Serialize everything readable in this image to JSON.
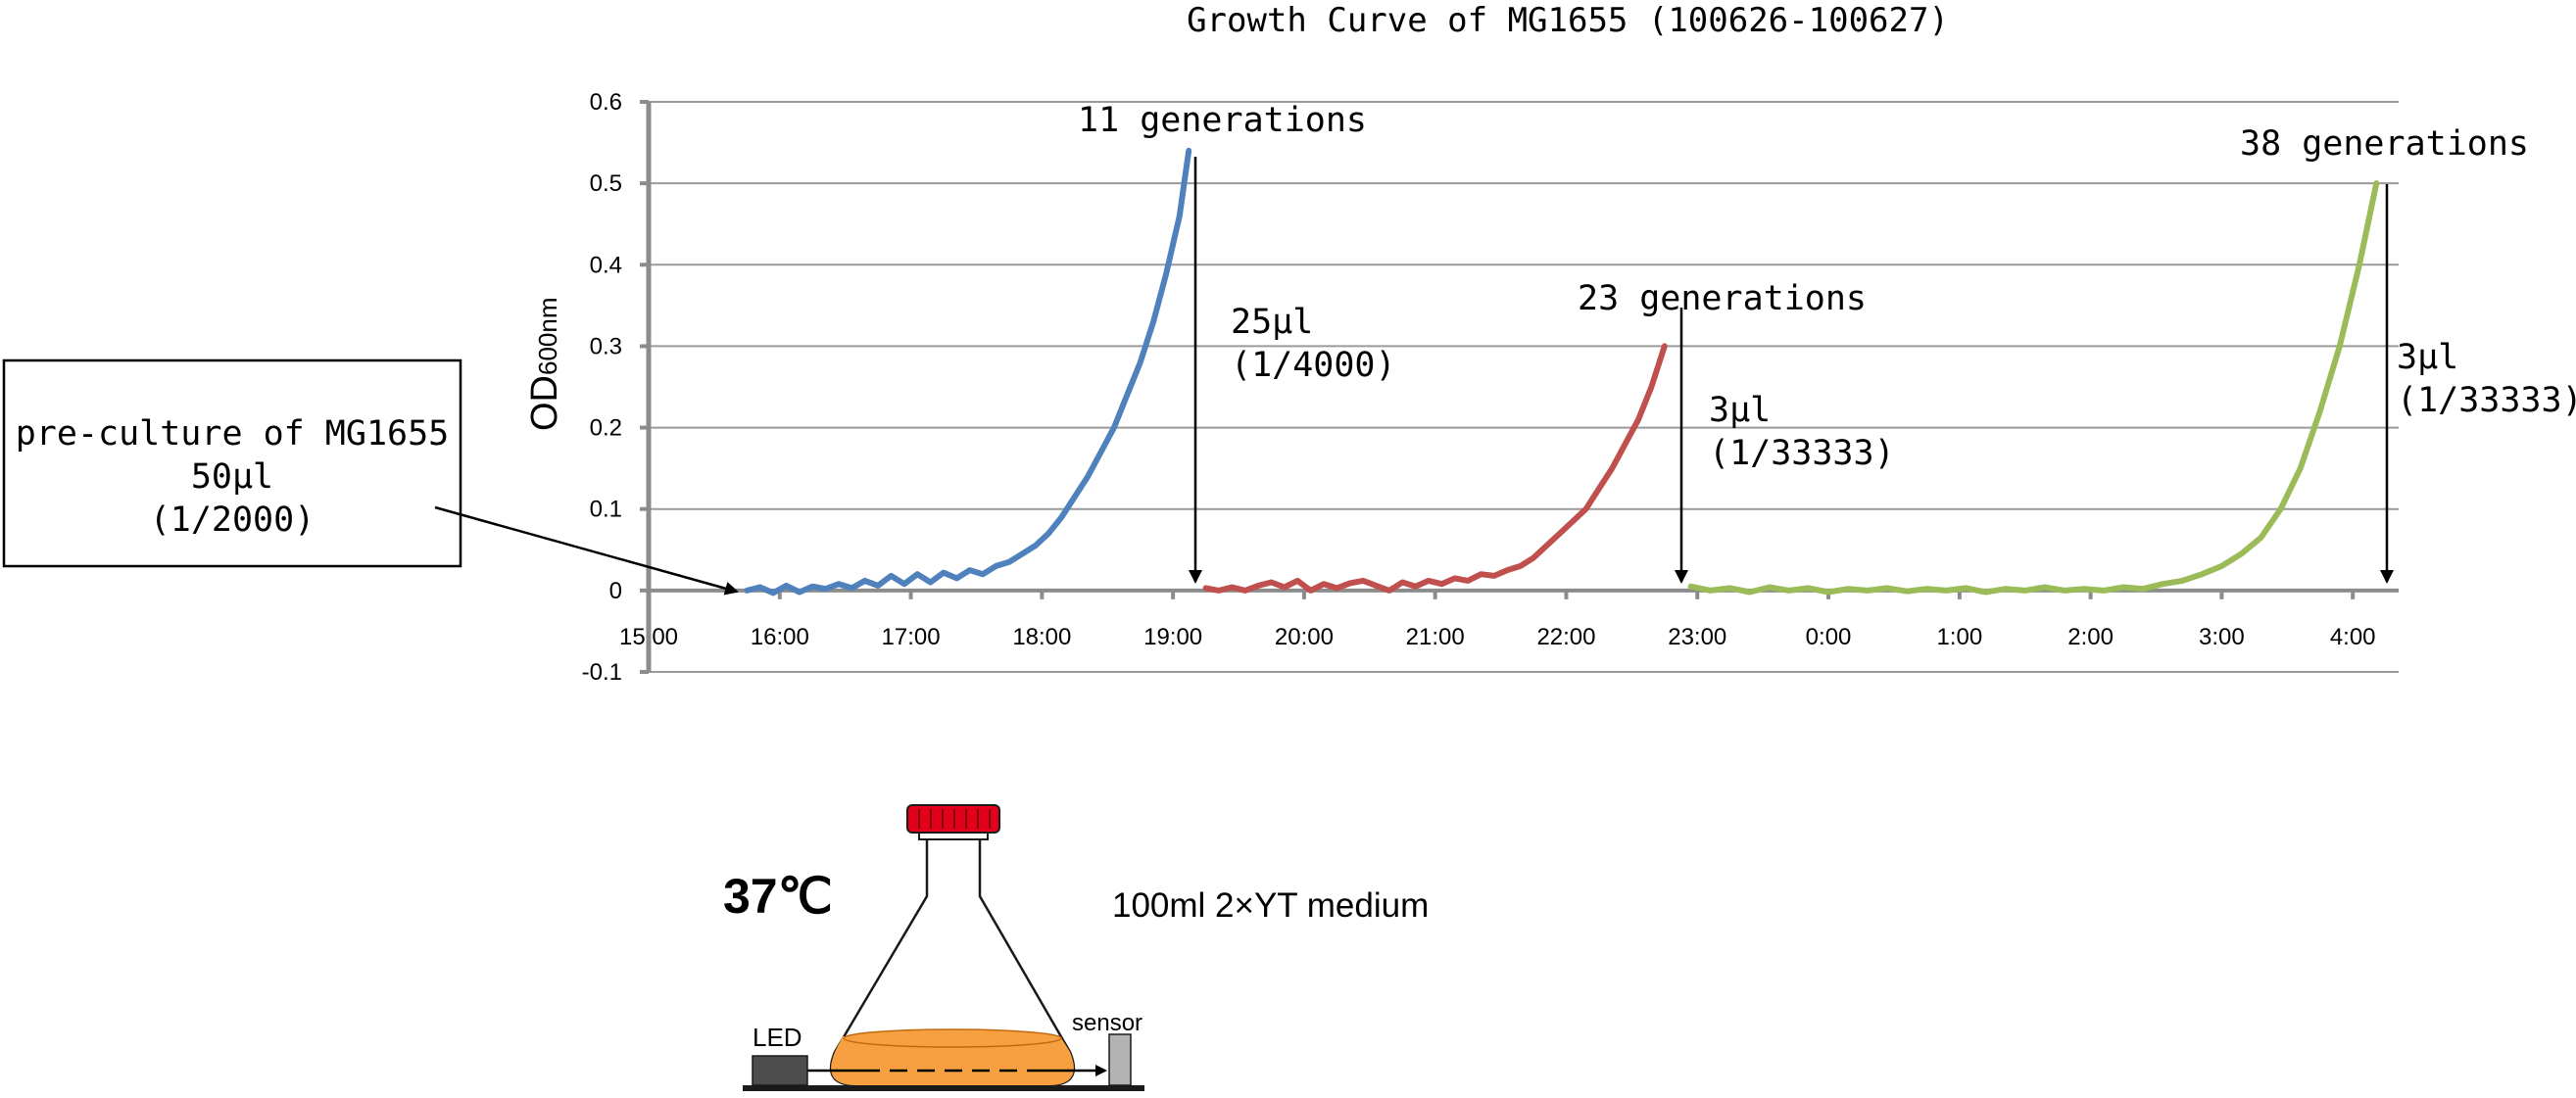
{
  "chart_data": {
    "type": "line",
    "title": "Growth Curve of MG1655 (100626-100627)",
    "ylabel_main": "OD",
    "ylabel_sub": "600nm",
    "xlabel": "",
    "ylim": [
      -0.1,
      0.6
    ],
    "yticks": [
      {
        "v": 0.6,
        "label": "0.6"
      },
      {
        "v": 0.5,
        "label": "0.5"
      },
      {
        "v": 0.4,
        "label": "0.4"
      },
      {
        "v": 0.3,
        "label": "0.3"
      },
      {
        "v": 0.2,
        "label": "0.2"
      },
      {
        "v": 0.1,
        "label": "0.1"
      },
      {
        "v": 0,
        "label": "0"
      },
      {
        "v": -0.1,
        "label": "-0.1"
      }
    ],
    "xlim_hours": [
      15,
      28.35
    ],
    "xticks": [
      {
        "h": 15,
        "label": "15:00"
      },
      {
        "h": 16,
        "label": "16:00"
      },
      {
        "h": 17,
        "label": "17:00"
      },
      {
        "h": 18,
        "label": "18:00"
      },
      {
        "h": 19,
        "label": "19:00"
      },
      {
        "h": 20,
        "label": "20:00"
      },
      {
        "h": 21,
        "label": "21:00"
      },
      {
        "h": 22,
        "label": "22:00"
      },
      {
        "h": 23,
        "label": "23:00"
      },
      {
        "h": 24,
        "label": "0:00"
      },
      {
        "h": 25,
        "label": "1:00"
      },
      {
        "h": 26,
        "label": "2:00"
      },
      {
        "h": 27,
        "label": "3:00"
      },
      {
        "h": 28,
        "label": "4:00"
      }
    ],
    "grid": true,
    "series": [
      {
        "color": "#4f81bd",
        "points": [
          [
            15.75,
            0.0
          ],
          [
            15.85,
            0.004
          ],
          [
            15.95,
            -0.003
          ],
          [
            16.05,
            0.006
          ],
          [
            16.15,
            -0.002
          ],
          [
            16.25,
            0.005
          ],
          [
            16.35,
            0.002
          ],
          [
            16.45,
            0.008
          ],
          [
            16.55,
            0.003
          ],
          [
            16.65,
            0.012
          ],
          [
            16.75,
            0.006
          ],
          [
            16.85,
            0.018
          ],
          [
            16.95,
            0.008
          ],
          [
            17.05,
            0.02
          ],
          [
            17.15,
            0.01
          ],
          [
            17.25,
            0.022
          ],
          [
            17.35,
            0.015
          ],
          [
            17.45,
            0.025
          ],
          [
            17.55,
            0.02
          ],
          [
            17.65,
            0.03
          ],
          [
            17.75,
            0.035
          ],
          [
            17.85,
            0.045
          ],
          [
            17.95,
            0.055
          ],
          [
            18.05,
            0.07
          ],
          [
            18.15,
            0.09
          ],
          [
            18.25,
            0.115
          ],
          [
            18.35,
            0.14
          ],
          [
            18.45,
            0.17
          ],
          [
            18.55,
            0.2
          ],
          [
            18.65,
            0.24
          ],
          [
            18.75,
            0.28
          ],
          [
            18.85,
            0.33
          ],
          [
            18.95,
            0.39
          ],
          [
            19.05,
            0.46
          ],
          [
            19.12,
            0.54
          ]
        ]
      },
      {
        "color": "#c0504d",
        "points": [
          [
            19.25,
            0.003
          ],
          [
            19.35,
            0.0
          ],
          [
            19.45,
            0.004
          ],
          [
            19.55,
            0.0
          ],
          [
            19.65,
            0.006
          ],
          [
            19.75,
            0.01
          ],
          [
            19.85,
            0.004
          ],
          [
            19.95,
            0.012
          ],
          [
            20.05,
            0.0
          ],
          [
            20.15,
            0.008
          ],
          [
            20.25,
            0.003
          ],
          [
            20.35,
            0.009
          ],
          [
            20.45,
            0.012
          ],
          [
            20.55,
            0.006
          ],
          [
            20.65,
            0.0
          ],
          [
            20.75,
            0.01
          ],
          [
            20.85,
            0.005
          ],
          [
            20.95,
            0.012
          ],
          [
            21.05,
            0.008
          ],
          [
            21.15,
            0.015
          ],
          [
            21.25,
            0.012
          ],
          [
            21.35,
            0.02
          ],
          [
            21.45,
            0.018
          ],
          [
            21.55,
            0.025
          ],
          [
            21.65,
            0.03
          ],
          [
            21.75,
            0.04
          ],
          [
            21.85,
            0.055
          ],
          [
            21.95,
            0.07
          ],
          [
            22.05,
            0.085
          ],
          [
            22.15,
            0.1
          ],
          [
            22.25,
            0.125
          ],
          [
            22.35,
            0.15
          ],
          [
            22.45,
            0.18
          ],
          [
            22.55,
            0.21
          ],
          [
            22.65,
            0.25
          ],
          [
            22.75,
            0.3
          ]
        ]
      },
      {
        "color": "#9bbb59",
        "points": [
          [
            22.95,
            0.005
          ],
          [
            23.1,
            0.0
          ],
          [
            23.25,
            0.003
          ],
          [
            23.4,
            -0.002
          ],
          [
            23.55,
            0.004
          ],
          [
            23.7,
            0.0
          ],
          [
            23.85,
            0.003
          ],
          [
            24.0,
            -0.002
          ],
          [
            24.15,
            0.002
          ],
          [
            24.3,
            0.0
          ],
          [
            24.45,
            0.003
          ],
          [
            24.6,
            -0.001
          ],
          [
            24.75,
            0.002
          ],
          [
            24.9,
            0.0
          ],
          [
            25.05,
            0.003
          ],
          [
            25.2,
            -0.002
          ],
          [
            25.35,
            0.002
          ],
          [
            25.5,
            0.0
          ],
          [
            25.65,
            0.004
          ],
          [
            25.8,
            0.0
          ],
          [
            25.95,
            0.002
          ],
          [
            26.1,
            0.0
          ],
          [
            26.25,
            0.004
          ],
          [
            26.4,
            0.002
          ],
          [
            26.55,
            0.008
          ],
          [
            26.7,
            0.012
          ],
          [
            26.85,
            0.02
          ],
          [
            27.0,
            0.03
          ],
          [
            27.15,
            0.045
          ],
          [
            27.3,
            0.065
          ],
          [
            27.45,
            0.1
          ],
          [
            27.6,
            0.15
          ],
          [
            27.75,
            0.22
          ],
          [
            27.9,
            0.3
          ],
          [
            28.05,
            0.4
          ],
          [
            28.18,
            0.5
          ]
        ]
      }
    ],
    "annotations": {
      "gen1": "11 generations",
      "gen2": "23 generations",
      "gen3": "38 generations",
      "d1_amount": "25μl",
      "d1_ratio": "(1/4000)",
      "d2_amount": "3μl",
      "d2_ratio": "(1/33333)",
      "d3_amount": "3μl",
      "d3_ratio": "(1/33333)",
      "preculture_line1": "pre-culture of MG1655",
      "preculture_line2": "50μl",
      "preculture_line3": "(1/2000)"
    }
  },
  "apparatus": {
    "temperature": "37℃",
    "medium": "100ml 2×YT medium",
    "led_label": "LED",
    "sensor_label": "sensor",
    "colors": {
      "cap": "#e2001a",
      "liquid": "#f7a041",
      "led_block": "#4d4d4d",
      "sensor_block": "#b3b3b3"
    }
  }
}
